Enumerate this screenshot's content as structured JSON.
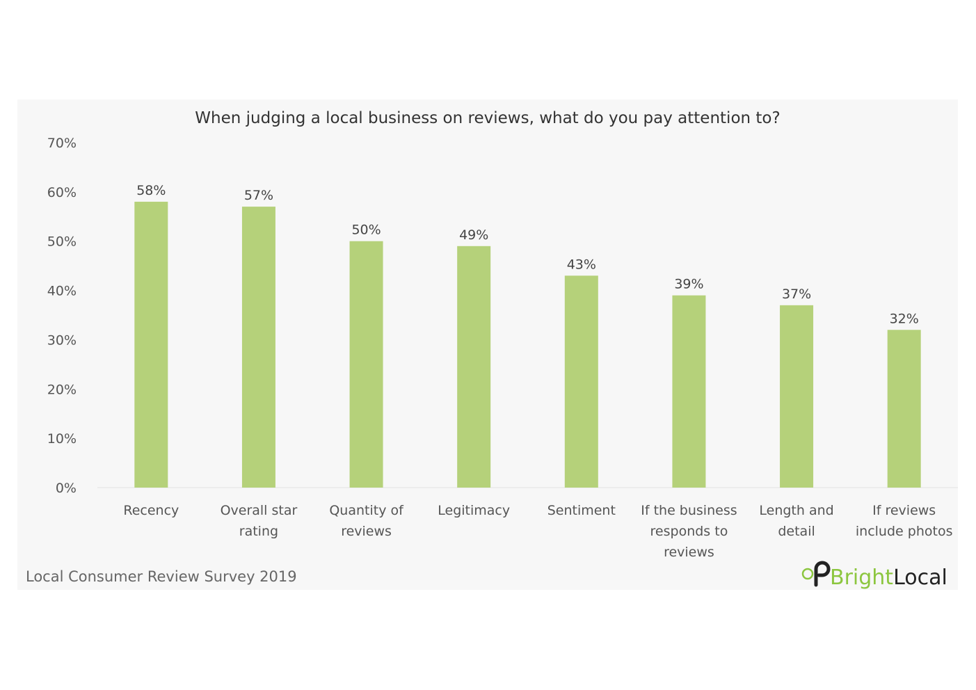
{
  "chart_data": {
    "type": "bar",
    "title": "When judging a local business on reviews, what do you pay attention to?",
    "categories": [
      [
        "Recency"
      ],
      [
        "Overall star",
        "rating"
      ],
      [
        "Quantity of",
        "reviews"
      ],
      [
        "Legitimacy"
      ],
      [
        "Sentiment"
      ],
      [
        "If the business",
        "responds to",
        "reviews"
      ],
      [
        "Length and",
        "detail"
      ],
      [
        "If reviews",
        "include photos"
      ]
    ],
    "values": [
      58,
      57,
      50,
      49,
      43,
      39,
      37,
      32
    ],
    "value_labels": [
      "58%",
      "57%",
      "50%",
      "49%",
      "43%",
      "39%",
      "37%",
      "32%"
    ],
    "yticks": [
      "0%",
      "10%",
      "20%",
      "30%",
      "40%",
      "50%",
      "60%",
      "70%"
    ],
    "ylim": [
      0,
      70
    ],
    "xlabel": "",
    "ylabel": "",
    "grid": false,
    "bar_color": "#b5d17a"
  },
  "footer": {
    "source": "Local Consumer Review Survey 2019",
    "brand_part1": "Bright",
    "brand_part2": "Local",
    "brand_icon": "map-pin-icon",
    "brand_color": "#8cc63f"
  }
}
